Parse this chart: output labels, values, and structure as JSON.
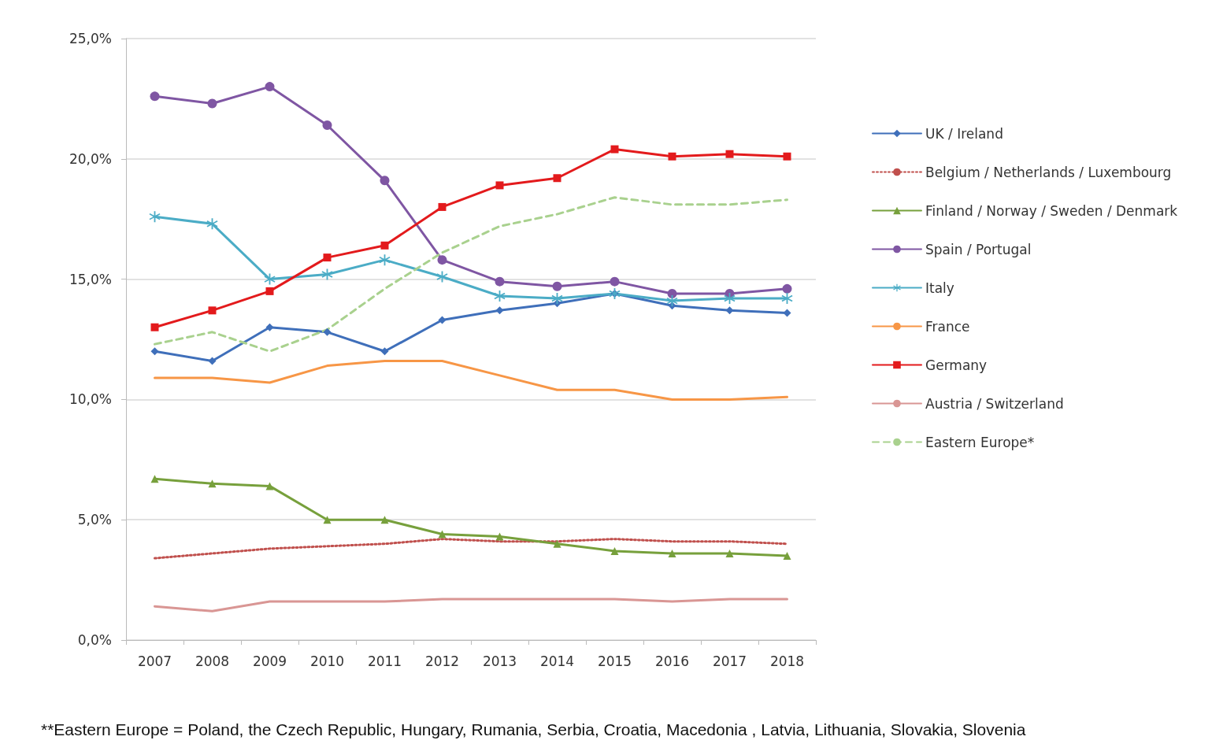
{
  "chart_data": {
    "type": "line",
    "categories": [
      "2007",
      "2008",
      "2009",
      "2010",
      "2011",
      "2012",
      "2013",
      "2014",
      "2015",
      "2016",
      "2017",
      "2018"
    ],
    "series": [
      {
        "name": "UK / Ireland",
        "color": "#3f6fba",
        "marker": "diamond",
        "line_style": "solid",
        "values": [
          12.0,
          11.6,
          13.0,
          12.8,
          12.0,
          13.3,
          13.7,
          14.0,
          14.4,
          13.9,
          13.7,
          13.6
        ]
      },
      {
        "name": "Belgium / Netherlands / Luxembourg",
        "color": "#c0504d",
        "marker": "none",
        "line_style": "dotted",
        "values": [
          3.4,
          3.6,
          3.8,
          3.9,
          4.0,
          4.2,
          4.1,
          4.1,
          4.2,
          4.1,
          4.1,
          4.0
        ]
      },
      {
        "name": "Finland / Norway / Sweden / Denmark",
        "color": "#77a03c",
        "marker": "triangle",
        "line_style": "solid",
        "values": [
          6.7,
          6.5,
          6.4,
          5.0,
          5.0,
          4.4,
          4.3,
          4.0,
          3.7,
          3.6,
          3.6,
          3.5
        ]
      },
      {
        "name": "Spain / Portugal",
        "color": "#7f56a3",
        "marker": "circle",
        "line_style": "solid",
        "values": [
          22.6,
          22.3,
          23.0,
          21.4,
          19.1,
          15.8,
          14.9,
          14.7,
          14.9,
          14.4,
          14.4,
          14.6
        ]
      },
      {
        "name": "Italy",
        "color": "#4bacc6",
        "marker": "star",
        "line_style": "solid",
        "values": [
          17.6,
          17.3,
          15.0,
          15.2,
          15.8,
          15.1,
          14.3,
          14.2,
          14.4,
          14.1,
          14.2,
          14.2
        ]
      },
      {
        "name": "France",
        "color": "#f79646",
        "marker": "none",
        "line_style": "solid",
        "values": [
          10.9,
          10.9,
          10.7,
          11.4,
          11.6,
          11.6,
          11.0,
          10.4,
          10.4,
          10.0,
          10.0,
          10.1
        ]
      },
      {
        "name": "Germany",
        "color": "#e31a1c",
        "marker": "square",
        "line_style": "solid",
        "values": [
          13.0,
          13.7,
          14.5,
          15.9,
          16.4,
          18.0,
          18.9,
          19.2,
          20.4,
          20.1,
          20.2,
          20.1
        ]
      },
      {
        "name": "Austria / Switzerland",
        "color": "#d99694",
        "marker": "none",
        "line_style": "solid",
        "values": [
          1.4,
          1.2,
          1.6,
          1.6,
          1.6,
          1.7,
          1.7,
          1.7,
          1.7,
          1.6,
          1.7,
          1.7
        ]
      },
      {
        "name": "Eastern Europe*",
        "color": "#a9d18e",
        "marker": "none",
        "line_style": "dashed",
        "values": [
          12.3,
          12.8,
          12.0,
          12.9,
          14.6,
          16.1,
          17.2,
          17.7,
          18.4,
          18.1,
          18.1,
          18.3
        ]
      }
    ],
    "ylim": [
      0,
      25
    ],
    "yticks": [
      {
        "value": 0,
        "label": "0,0%"
      },
      {
        "value": 5,
        "label": "5,0%"
      },
      {
        "value": 10,
        "label": "10,0%"
      },
      {
        "value": 15,
        "label": "15,0%"
      },
      {
        "value": 20,
        "label": "20,0%"
      },
      {
        "value": 25,
        "label": "25,0%"
      }
    ],
    "grid": "y",
    "legend": "right",
    "annotations": [
      "**Eastern Europe = Poland, the Czech Republic, Hungary, Rumania, Serbia, Croatia, Macedonia , Latvia, Lithuania, Slovakia, Slovenia"
    ]
  }
}
